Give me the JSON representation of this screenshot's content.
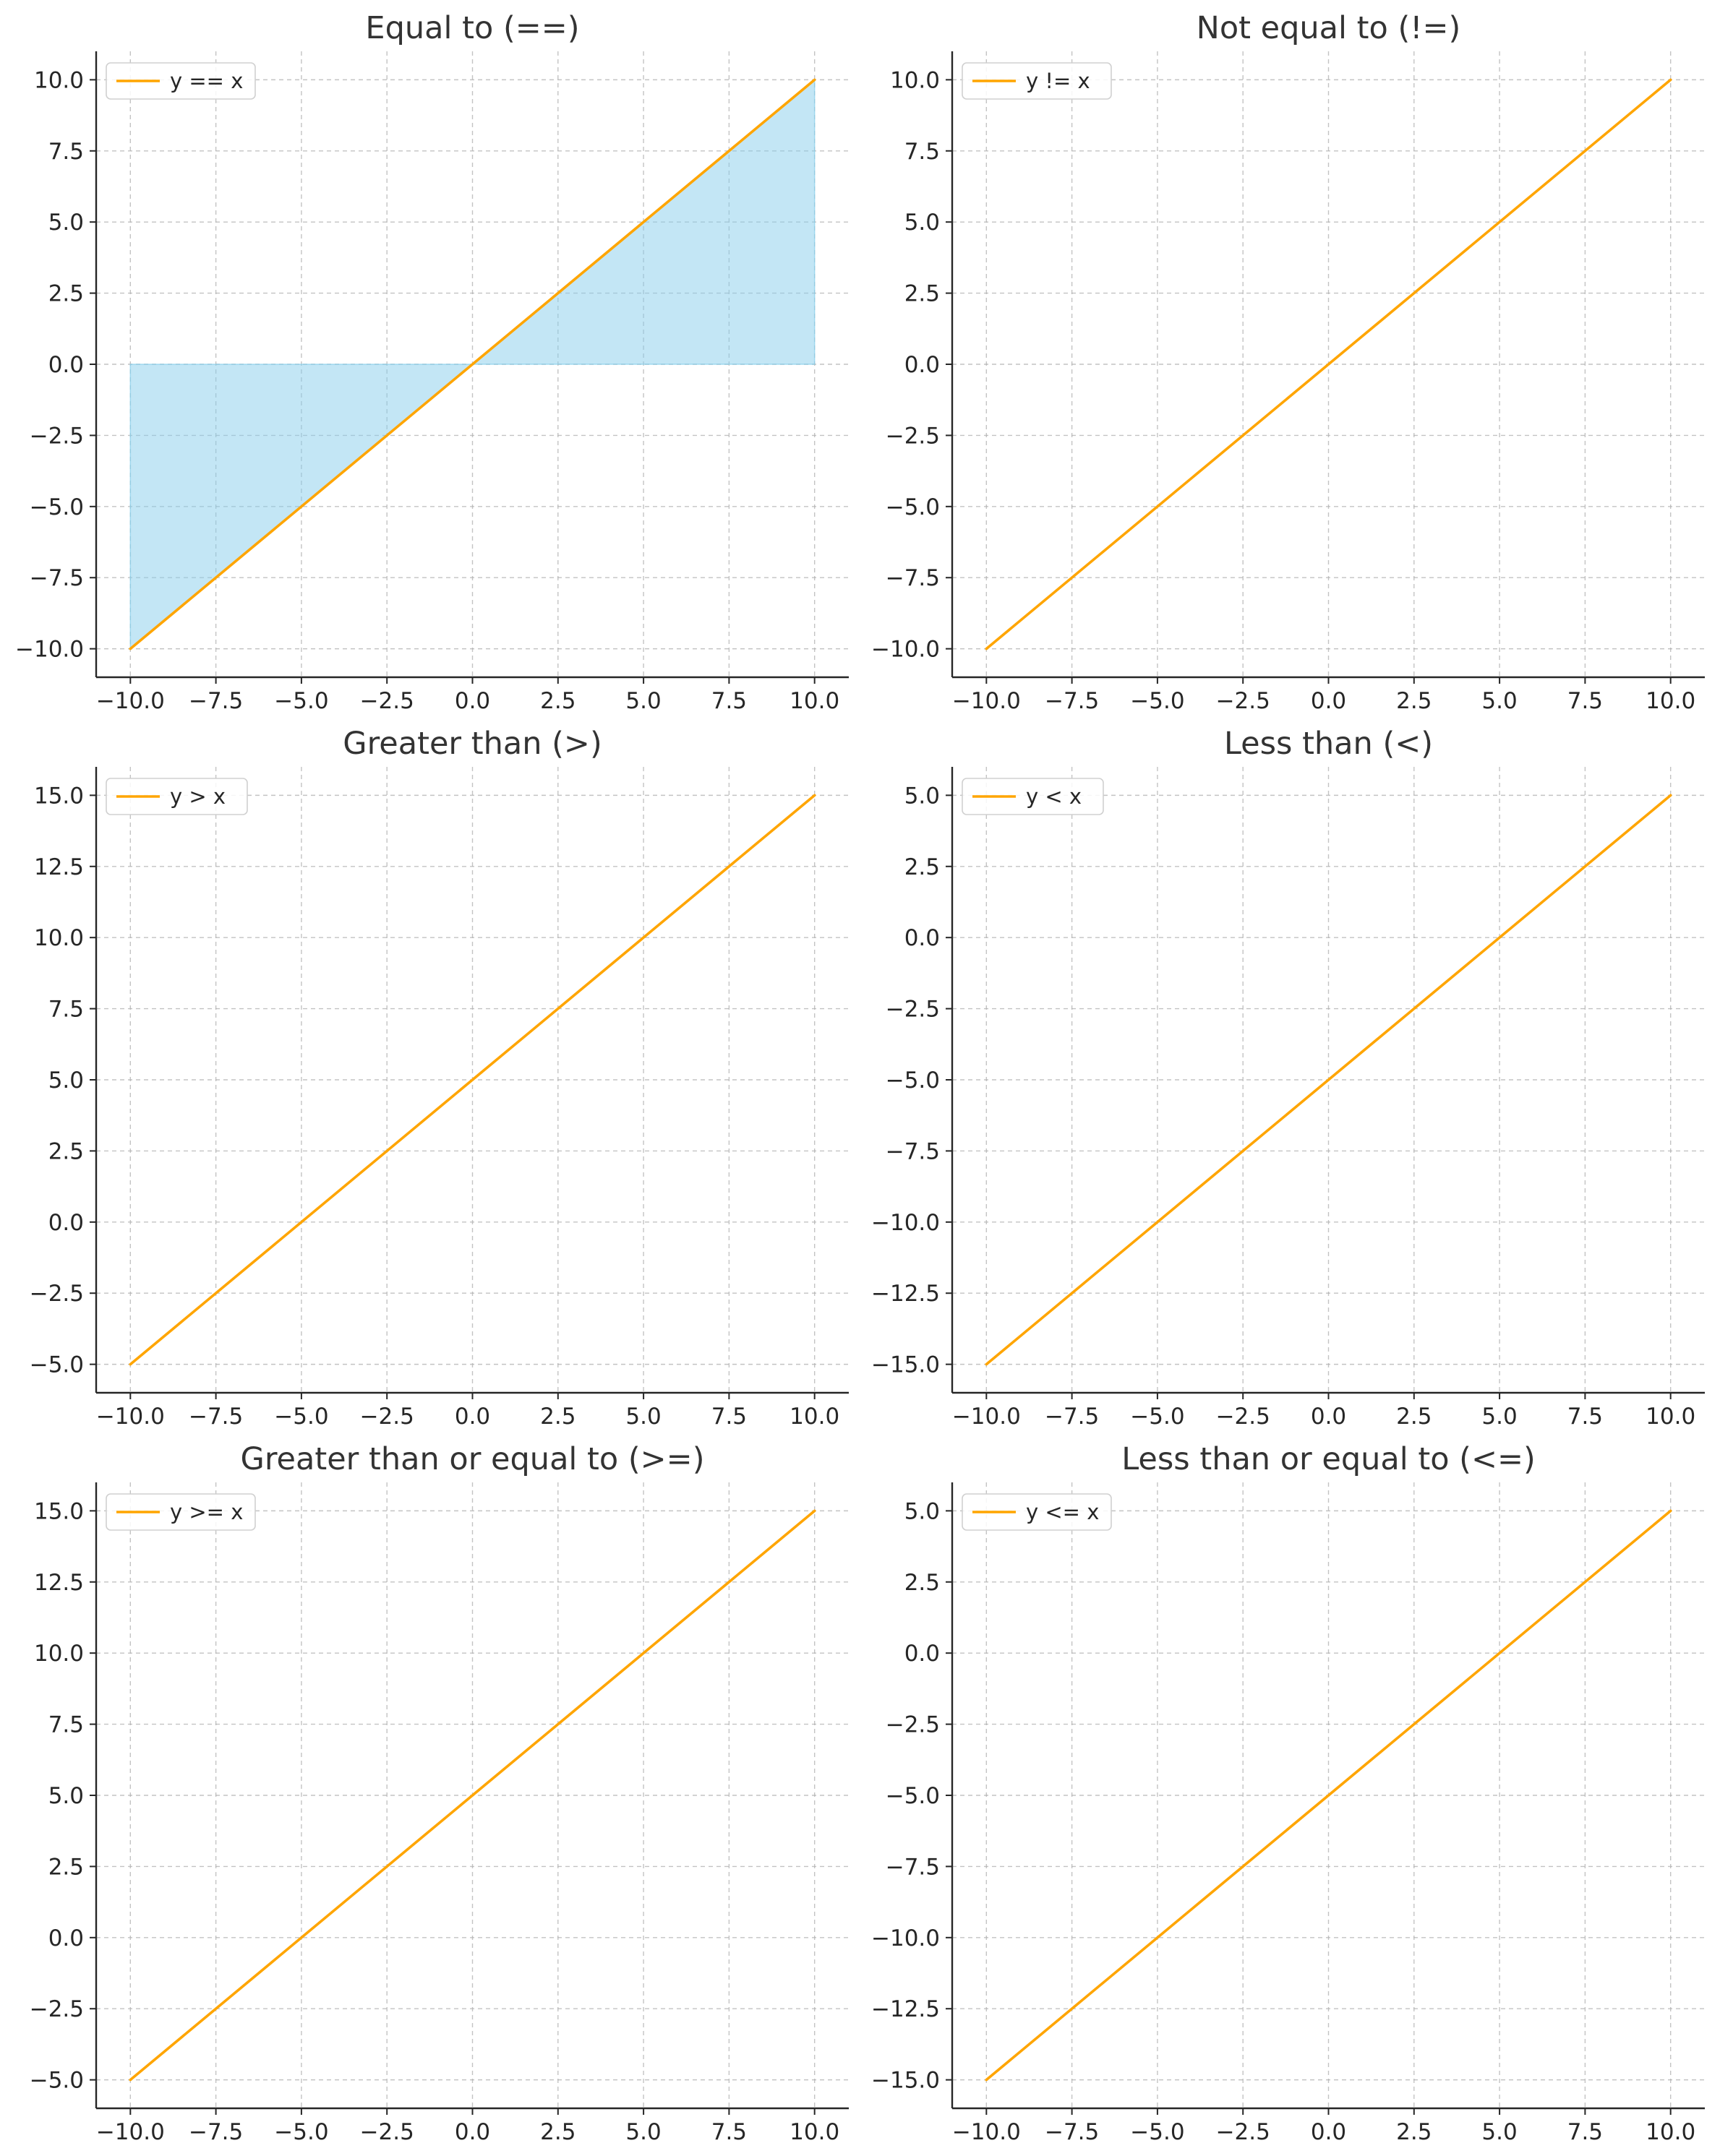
{
  "colors": {
    "line": "#ffa500",
    "fill": "#87ceeb",
    "grid": "#b0b0b0",
    "axis": "#262626",
    "text": "#262626",
    "title": "#333333"
  },
  "chart_data": [
    {
      "type": "line",
      "title": "Equal to (==)",
      "xlabel": "",
      "ylabel": "",
      "xlim": [
        -11,
        11
      ],
      "ylim": [
        -11,
        11
      ],
      "xticks": [
        -10,
        -7.5,
        -5,
        -2.5,
        0,
        2.5,
        5,
        7.5,
        10
      ],
      "xtick_labels": [
        "−10.0",
        "−7.5",
        "−5.0",
        "−2.5",
        "0.0",
        "2.5",
        "5.0",
        "7.5",
        "10.0"
      ],
      "yticks": [
        -10,
        -7.5,
        -5,
        -2.5,
        0,
        2.5,
        5,
        7.5,
        10
      ],
      "ytick_labels": [
        "−10.0",
        "−7.5",
        "−5.0",
        "−2.5",
        "0.0",
        "2.5",
        "5.0",
        "7.5",
        "10.0"
      ],
      "grid": true,
      "legend_position": "top-left",
      "series": [
        {
          "name": "y == x",
          "x": [
            -10,
            10
          ],
          "y": [
            -10,
            10
          ]
        }
      ],
      "fill_between": {
        "x": [
          -10,
          10
        ],
        "y1": [
          -10,
          10
        ],
        "y2": [
          0,
          0
        ]
      }
    },
    {
      "type": "line",
      "title": "Not equal to (!=)",
      "xlabel": "",
      "ylabel": "",
      "xlim": [
        -11,
        11
      ],
      "ylim": [
        -11,
        11
      ],
      "xticks": [
        -10,
        -7.5,
        -5,
        -2.5,
        0,
        2.5,
        5,
        7.5,
        10
      ],
      "xtick_labels": [
        "−10.0",
        "−7.5",
        "−5.0",
        "−2.5",
        "0.0",
        "2.5",
        "5.0",
        "7.5",
        "10.0"
      ],
      "yticks": [
        -10,
        -7.5,
        -5,
        -2.5,
        0,
        2.5,
        5,
        7.5,
        10
      ],
      "ytick_labels": [
        "−10.0",
        "−7.5",
        "−5.0",
        "−2.5",
        "0.0",
        "2.5",
        "5.0",
        "7.5",
        "10.0"
      ],
      "grid": true,
      "legend_position": "top-left",
      "series": [
        {
          "name": "y != x",
          "x": [
            -10,
            10
          ],
          "y": [
            -10,
            10
          ]
        }
      ]
    },
    {
      "type": "line",
      "title": "Greater than (>)",
      "xlabel": "",
      "ylabel": "",
      "xlim": [
        -11,
        11
      ],
      "ylim": [
        -6,
        16
      ],
      "xticks": [
        -10,
        -7.5,
        -5,
        -2.5,
        0,
        2.5,
        5,
        7.5,
        10
      ],
      "xtick_labels": [
        "−10.0",
        "−7.5",
        "−5.0",
        "−2.5",
        "0.0",
        "2.5",
        "5.0",
        "7.5",
        "10.0"
      ],
      "yticks": [
        -5,
        -2.5,
        0,
        2.5,
        5,
        7.5,
        10,
        12.5,
        15
      ],
      "ytick_labels": [
        "−5.0",
        "−2.5",
        "0.0",
        "2.5",
        "5.0",
        "7.5",
        "10.0",
        "12.5",
        "15.0"
      ],
      "grid": true,
      "legend_position": "top-left",
      "series": [
        {
          "name": "y > x",
          "x": [
            -10,
            10
          ],
          "y": [
            -5,
            15
          ]
        }
      ]
    },
    {
      "type": "line",
      "title": "Less than (<)",
      "xlabel": "",
      "ylabel": "",
      "xlim": [
        -11,
        11
      ],
      "ylim": [
        -16,
        6
      ],
      "xticks": [
        -10,
        -7.5,
        -5,
        -2.5,
        0,
        2.5,
        5,
        7.5,
        10
      ],
      "xtick_labels": [
        "−10.0",
        "−7.5",
        "−5.0",
        "−2.5",
        "0.0",
        "2.5",
        "5.0",
        "7.5",
        "10.0"
      ],
      "yticks": [
        -15,
        -12.5,
        -10,
        -7.5,
        -5,
        -2.5,
        0,
        2.5,
        5
      ],
      "ytick_labels": [
        "−15.0",
        "−12.5",
        "−10.0",
        "−7.5",
        "−5.0",
        "−2.5",
        "0.0",
        "2.5",
        "5.0"
      ],
      "grid": true,
      "legend_position": "top-left",
      "series": [
        {
          "name": "y < x",
          "x": [
            -10,
            10
          ],
          "y": [
            -15,
            5
          ]
        }
      ]
    },
    {
      "type": "line",
      "title": "Greater than or equal to (>=)",
      "xlabel": "",
      "ylabel": "",
      "xlim": [
        -11,
        11
      ],
      "ylim": [
        -6,
        16
      ],
      "xticks": [
        -10,
        -7.5,
        -5,
        -2.5,
        0,
        2.5,
        5,
        7.5,
        10
      ],
      "xtick_labels": [
        "−10.0",
        "−7.5",
        "−5.0",
        "−2.5",
        "0.0",
        "2.5",
        "5.0",
        "7.5",
        "10.0"
      ],
      "yticks": [
        -5,
        -2.5,
        0,
        2.5,
        5,
        7.5,
        10,
        12.5,
        15
      ],
      "ytick_labels": [
        "−5.0",
        "−2.5",
        "0.0",
        "2.5",
        "5.0",
        "7.5",
        "10.0",
        "12.5",
        "15.0"
      ],
      "grid": true,
      "legend_position": "top-left",
      "series": [
        {
          "name": "y >= x",
          "x": [
            -10,
            10
          ],
          "y": [
            -5,
            15
          ]
        }
      ]
    },
    {
      "type": "line",
      "title": "Less than or equal to (<=)",
      "xlabel": "",
      "ylabel": "",
      "xlim": [
        -11,
        11
      ],
      "ylim": [
        -16,
        6
      ],
      "xticks": [
        -10,
        -7.5,
        -5,
        -2.5,
        0,
        2.5,
        5,
        7.5,
        10
      ],
      "xtick_labels": [
        "−10.0",
        "−7.5",
        "−5.0",
        "−2.5",
        "0.0",
        "2.5",
        "5.0",
        "7.5",
        "10.0"
      ],
      "yticks": [
        -15,
        -12.5,
        -10,
        -7.5,
        -5,
        -2.5,
        0,
        2.5,
        5
      ],
      "ytick_labels": [
        "−15.0",
        "−12.5",
        "−10.0",
        "−7.5",
        "−5.0",
        "−2.5",
        "0.0",
        "2.5",
        "5.0"
      ],
      "grid": true,
      "legend_position": "top-left",
      "series": [
        {
          "name": "y <= x",
          "x": [
            -10,
            10
          ],
          "y": [
            -15,
            5
          ]
        }
      ]
    }
  ]
}
